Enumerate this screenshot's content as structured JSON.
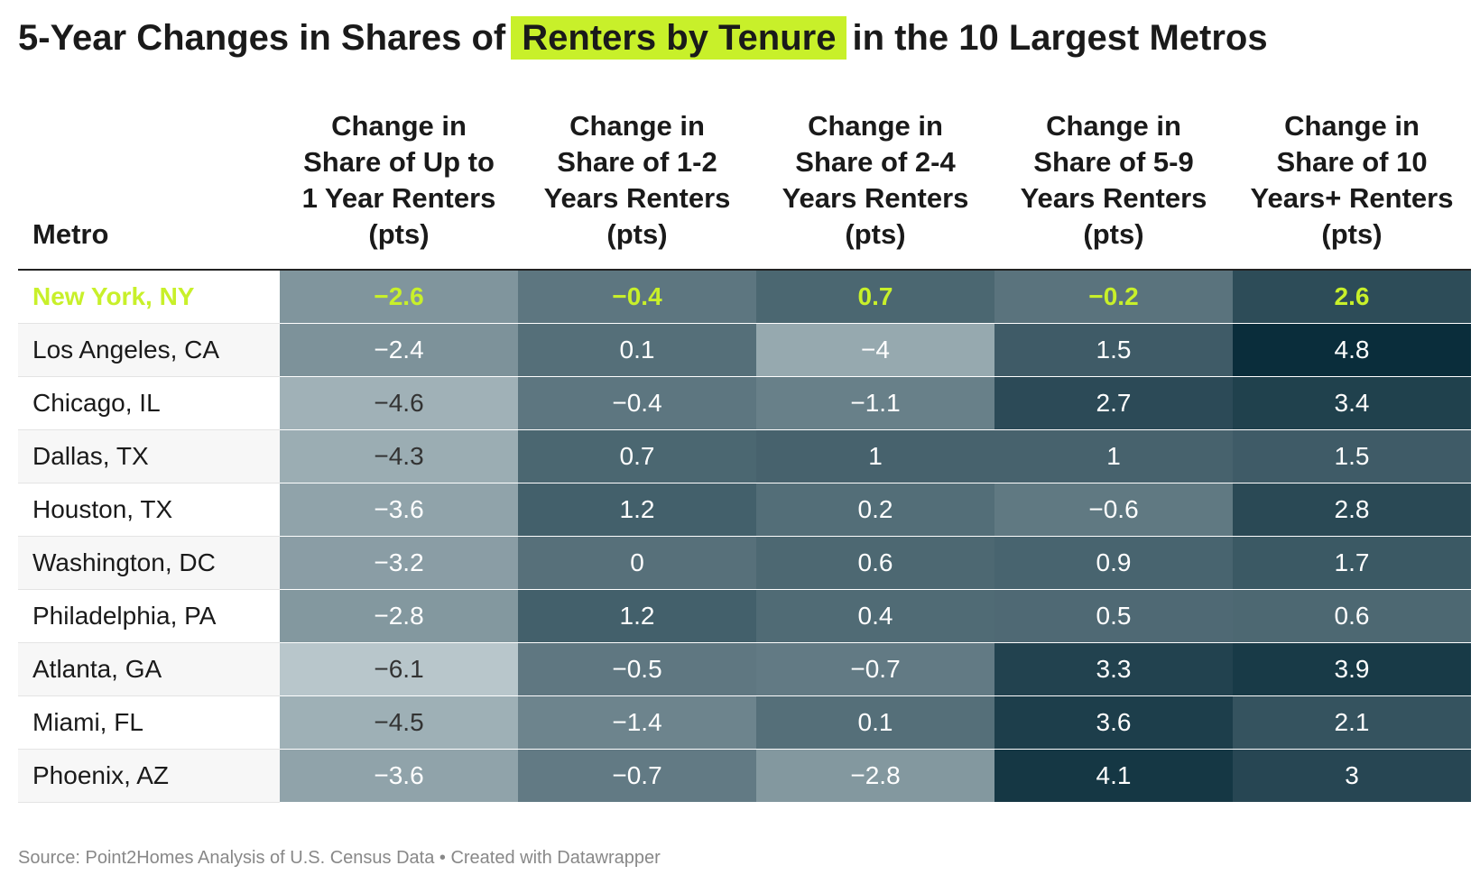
{
  "header": {
    "title_before": "5-Year Changes in Shares of",
    "title_highlight": "Renters by Tenure",
    "title_after": "in the 10 Largest Metros"
  },
  "table": {
    "columns": [
      "Metro",
      "Change in Share of Up to 1 Year Renters (pts)",
      "Change in Share of 1-2 Years Renters (pts)",
      "Change in Share of 2-4 Years Renters (pts)",
      "Change in Share of 5-9 Years Renters (pts)",
      "Change in Share of 10 Years+ Renters (pts)"
    ],
    "rows": [
      [
        "New York, NY",
        "−2.6",
        "−0.4",
        "0.7",
        "−0.2",
        "2.6"
      ],
      [
        "Los Angeles, CA",
        "−2.4",
        "0.1",
        "−4",
        "1.5",
        "4.8"
      ],
      [
        "Chicago, IL",
        "−4.6",
        "−0.4",
        "−1.1",
        "2.7",
        "3.4"
      ],
      [
        "Dallas, TX",
        "−4.3",
        "0.7",
        "1",
        "1",
        "1.5"
      ],
      [
        "Houston, TX",
        "−3.6",
        "1.2",
        "0.2",
        "−0.6",
        "2.8"
      ],
      [
        "Washington, DC",
        "−3.2",
        "0",
        "0.6",
        "0.9",
        "1.7"
      ],
      [
        "Philadelphia, PA",
        "−2.8",
        "1.2",
        "0.4",
        "0.5",
        "0.6"
      ],
      [
        "Atlanta, GA",
        "−6.1",
        "−0.5",
        "−0.7",
        "3.3",
        "3.9"
      ],
      [
        "Miami, FL",
        "−4.5",
        "−1.4",
        "0.1",
        "3.6",
        "2.1"
      ],
      [
        "Phoenix, AZ",
        "−3.6",
        "−0.7",
        "−2.8",
        "4.1",
        "3"
      ]
    ]
  },
  "footer": {
    "source": "Source: Point2Homes Analysis of U.S. Census Data • Created with Datawrapper"
  }
}
